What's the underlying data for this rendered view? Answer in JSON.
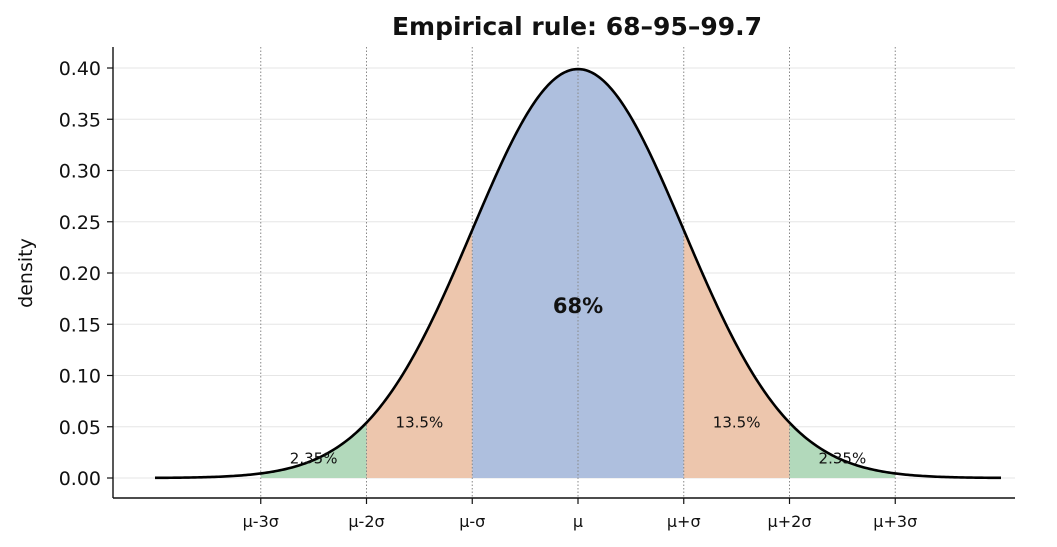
{
  "chart_data": {
    "type": "area",
    "title": "Empirical rule: 68–95–99.7",
    "ylabel": "density",
    "xlabel": "",
    "xlim": [
      -4,
      4
    ],
    "ylim": [
      -0.02,
      0.42
    ],
    "grid": "horizontal",
    "yticks": [
      0.0,
      0.05,
      0.1,
      0.15,
      0.2,
      0.25,
      0.3,
      0.35,
      0.4
    ],
    "ytick_labels": [
      "0.00",
      "0.05",
      "0.10",
      "0.15",
      "0.20",
      "0.25",
      "0.30",
      "0.35",
      "0.40"
    ],
    "xticks": [
      -3,
      -2,
      -1,
      0,
      1,
      2,
      3
    ],
    "xtick_labels": [
      "μ-3σ",
      "μ-2σ",
      "μ-σ",
      "μ",
      "μ+σ",
      "μ+2σ",
      "μ+3σ"
    ],
    "curve": {
      "distribution": "standard normal",
      "mean": 0,
      "sd": 1,
      "x_range": [
        -4,
        4
      ]
    },
    "bands": [
      {
        "from": -1,
        "to": 1,
        "color": "#aebfde",
        "label": "68%",
        "label_x": 0,
        "label_y": 0.168
      },
      {
        "from": -2,
        "to": -1,
        "color": "#edc6ad",
        "label": "13.5%",
        "label_x": -1.5,
        "label_y": 0.054
      },
      {
        "from": 1,
        "to": 2,
        "color": "#edc6ad",
        "label": "13.5%",
        "label_x": 1.5,
        "label_y": 0.054
      },
      {
        "from": -3,
        "to": -2,
        "color": "#b2d9bb",
        "label": "2.35%",
        "label_x": -2.5,
        "label_y": 0.019
      },
      {
        "from": 2,
        "to": 3,
        "color": "#b2d9bb",
        "label": "2.35%",
        "label_x": 2.5,
        "label_y": 0.019
      }
    ]
  }
}
